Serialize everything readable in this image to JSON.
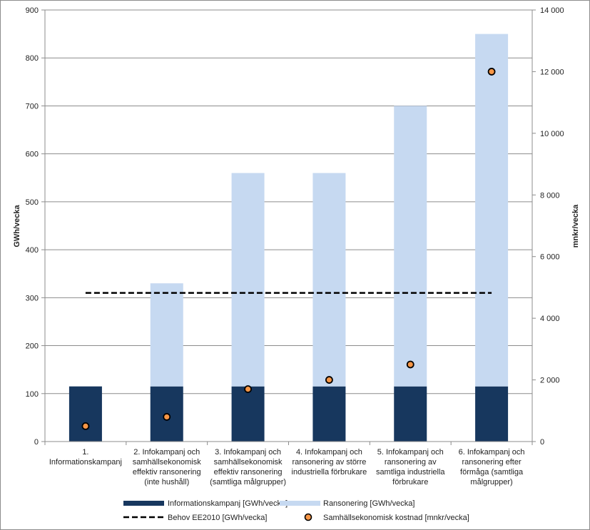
{
  "chart_data": {
    "type": "bar",
    "stacked": true,
    "categories": [
      [
        "1.",
        "Informationskampanj"
      ],
      [
        "2. Infokampanj och",
        "samhällsekonomisk",
        "effektiv ransonering",
        "(inte hushåll)"
      ],
      [
        "3. Infokampanj och",
        "samhällsekonomisk",
        "effektiv ransonering",
        "(samtliga målgrupper)"
      ],
      [
        "4. Infokampanj och",
        "ransonering av större",
        "industriella förbrukare"
      ],
      [
        "5. Infokampanj och",
        "ransonering av",
        "samtliga industriella",
        "förbrukare"
      ],
      [
        "6. Infokampanj och",
        "ransonering efter",
        "förmåga (samtliga",
        "målgrupper)"
      ]
    ],
    "series": [
      {
        "name": "Informationskampanj [GWh/vecka]",
        "type": "bar",
        "axis": "left",
        "color": "#17375e",
        "values": [
          115,
          115,
          115,
          115,
          115,
          115
        ]
      },
      {
        "name": "Ransonering [GWh/vecka]",
        "type": "bar",
        "axis": "left",
        "color": "#c6d9f1",
        "values": [
          0,
          215,
          445,
          445,
          585,
          735
        ]
      },
      {
        "name": "Behov EE2010 [GWh/vecka]",
        "type": "line",
        "dashed": true,
        "axis": "left",
        "color": "#000000",
        "values": [
          310,
          310,
          310,
          310,
          310,
          310
        ]
      },
      {
        "name": "Samhällsekonomisk kostnad [mnkr/vecka]",
        "type": "scatter",
        "axis": "right",
        "color": "#f79646",
        "values": [
          500,
          800,
          1700,
          2000,
          2500,
          12000
        ]
      }
    ],
    "ylabel": "GWh/vecka",
    "y2label": "mnkr/vecka",
    "ylim": [
      0,
      900
    ],
    "y2lim": [
      0,
      14000
    ],
    "yticks": [
      "0",
      "100",
      "200",
      "300",
      "400",
      "500",
      "600",
      "700",
      "800",
      "900"
    ],
    "y2ticks": [
      "0",
      "2 000",
      "4 000",
      "6 000",
      "8 000",
      "10 000",
      "12 000",
      "14 000"
    ],
    "grid": "horizontal",
    "legend_position": "bottom"
  }
}
